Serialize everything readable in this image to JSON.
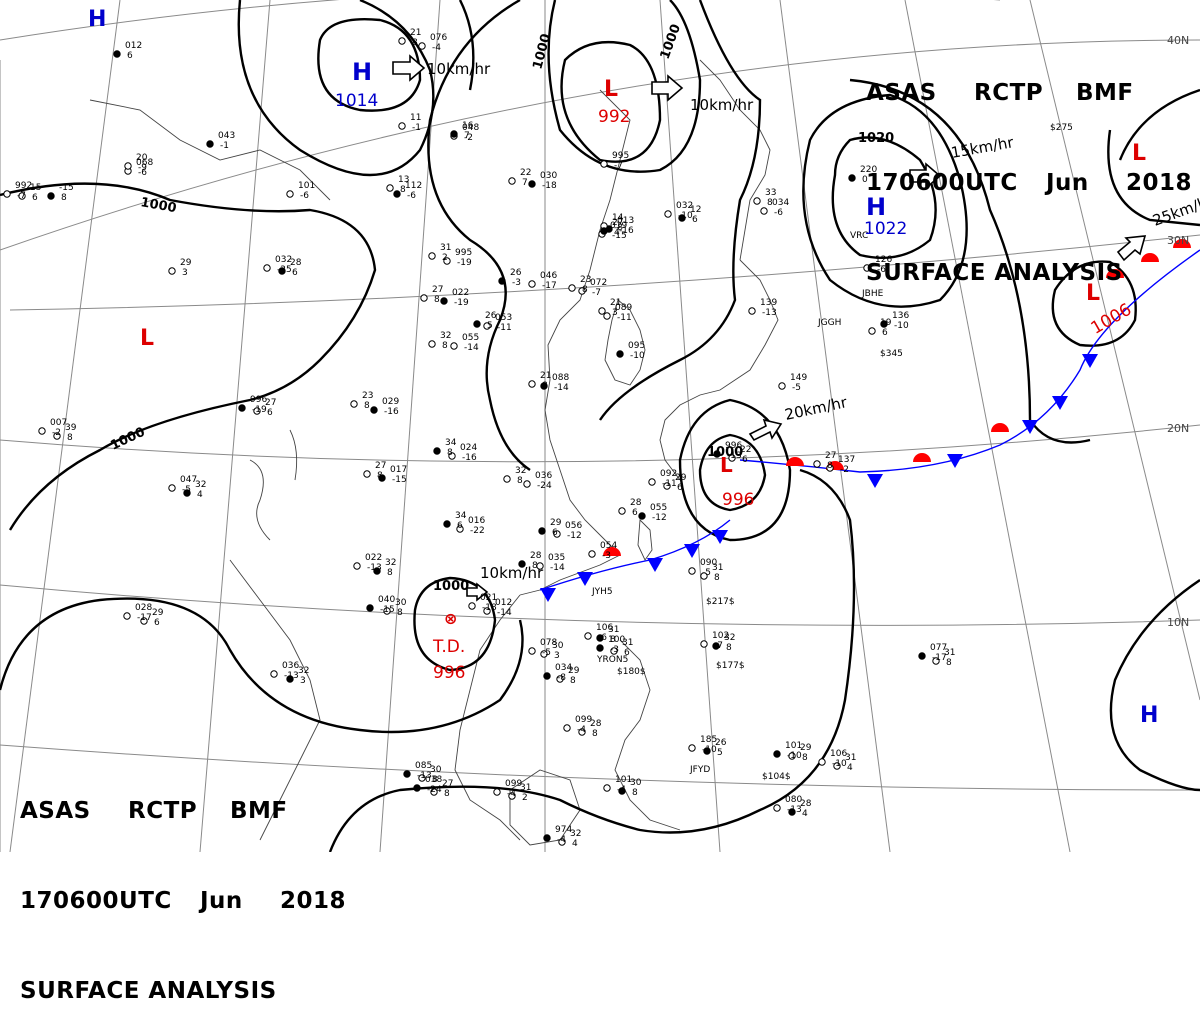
{
  "header": {
    "org_a": "ASAS",
    "org_b": "RCTP",
    "org_c": "BMF",
    "time": "170600UTC",
    "month": "Jun",
    "year": "2018",
    "title": "SURFACE ANALYSIS"
  },
  "centers": [
    {
      "kind": "H",
      "pressure": "1014"
    },
    {
      "kind": "L",
      "pressure": "992"
    },
    {
      "kind": "H",
      "pressure": "1022"
    },
    {
      "kind": "L",
      "pressure": "1006"
    },
    {
      "kind": "L",
      "pressure": ""
    },
    {
      "kind": "L",
      "pressure": ""
    },
    {
      "kind": "L",
      "pressure": "996"
    },
    {
      "kind": "H",
      "pressure": ""
    },
    {
      "kind": "H",
      "pressure": ""
    },
    {
      "kind": "TD",
      "label": "T.D.",
      "pressure": "996"
    }
  ],
  "motions": [
    "10km/hr",
    "10km/hr",
    "15km/hr",
    "25km/hr",
    "20km/hr",
    "10km/hr"
  ],
  "isobar_labels": [
    "1000",
    "1000",
    "1000",
    "1000",
    "1020",
    "1000",
    "1000"
  ],
  "lat_labels": [
    "40N",
    "30N",
    "20N",
    "10N"
  ],
  "colors": {
    "high": "#0000cc",
    "low": "#dd0000",
    "front_blue": "#0000ff",
    "front_red": "#ff0000",
    "line": "#000000",
    "grid": "#808080"
  },
  "stations": [
    [
      "012",
      "6"
    ],
    [
      "076",
      "-4"
    ],
    [
      "21",
      "8"
    ],
    [
      "043",
      "-1"
    ],
    [
      "11",
      "-1"
    ],
    [
      "048",
      "-2"
    ],
    [
      "16",
      "7"
    ],
    [
      "068",
      "-6"
    ],
    [
      "20",
      "-9"
    ],
    [
      "112",
      "-6"
    ],
    [
      "13",
      "8"
    ],
    [
      "101",
      "-6"
    ],
    [
      "-15",
      "8"
    ],
    [
      "995",
      "-19"
    ],
    [
      "31",
      "2"
    ],
    [
      "030",
      "-18"
    ],
    [
      "22",
      "7"
    ],
    [
      "995",
      "-7"
    ],
    [
      "013",
      "-16"
    ],
    [
      "14",
      "-8"
    ],
    [
      "019",
      "-15"
    ],
    [
      "27",
      "4"
    ],
    [
      "034",
      "-6"
    ],
    [
      "33",
      "8"
    ],
    [
      "220",
      "0"
    ],
    [
      "126",
      "-6"
    ],
    [
      "046",
      "-17"
    ],
    [
      "26",
      "-3"
    ],
    [
      "072",
      "-7"
    ],
    [
      "23",
      "8"
    ],
    [
      "022",
      "-19"
    ],
    [
      "27",
      "8"
    ],
    [
      "053",
      "-11"
    ],
    [
      "26",
      "5"
    ],
    [
      "089",
      "-11"
    ],
    [
      "21",
      "3"
    ],
    [
      "095",
      "-10"
    ],
    [
      "055",
      "-14"
    ],
    [
      "32",
      "8"
    ],
    [
      "088",
      "-14"
    ],
    [
      "21",
      "8"
    ],
    [
      "139",
      "-13"
    ],
    [
      "136",
      "-10"
    ],
    [
      "19",
      "6"
    ],
    [
      "149",
      "-5"
    ],
    [
      "029",
      "-16"
    ],
    [
      "23",
      "8"
    ],
    [
      "024",
      "-16"
    ],
    [
      "34",
      "8"
    ],
    [
      "036",
      "-24"
    ],
    [
      "32",
      "8"
    ],
    [
      "017",
      "-15"
    ],
    [
      "27",
      "8"
    ],
    [
      "016",
      "-22"
    ],
    [
      "34",
      "6"
    ],
    [
      "137",
      "-2"
    ],
    [
      "27",
      "8"
    ],
    [
      "055",
      "-12"
    ],
    [
      "28",
      "6"
    ],
    [
      "056",
      "-12"
    ],
    [
      "29",
      "6"
    ],
    [
      "054",
      "-3"
    ],
    [
      "035",
      "-14"
    ],
    [
      "28",
      "8"
    ],
    [
      "012",
      "-14"
    ],
    [
      "021",
      "-18"
    ],
    [
      "32",
      "8"
    ],
    [
      "022",
      "-13"
    ],
    [
      "30",
      "8"
    ],
    [
      "040",
      "-15"
    ],
    [
      "29",
      "6"
    ],
    [
      "028",
      "-17"
    ],
    [
      "32",
      "3"
    ],
    [
      "036",
      "-13"
    ],
    [
      "27",
      "8"
    ],
    [
      "038",
      "-24"
    ],
    [
      "30",
      "3"
    ],
    [
      "078",
      "-5"
    ],
    [
      "31",
      "8"
    ],
    [
      "106",
      "-6"
    ],
    [
      "31",
      "6"
    ],
    [
      "100",
      "-3"
    ],
    [
      "31",
      "8"
    ],
    [
      "090",
      "-5"
    ],
    [
      "32",
      "8"
    ],
    [
      "102",
      "-7"
    ],
    [
      "31",
      "8"
    ],
    [
      "077",
      "-17"
    ],
    [
      "28",
      "8"
    ],
    [
      "099",
      "-4"
    ],
    [
      "26",
      "5"
    ],
    [
      "185",
      "-10"
    ],
    [
      "29",
      "8"
    ],
    [
      "101",
      "-10"
    ],
    [
      "31",
      "4"
    ],
    [
      "106",
      "-10"
    ],
    [
      "28",
      "4"
    ],
    [
      "080",
      "-13"
    ],
    [
      "30",
      "8"
    ],
    [
      "085",
      "-13"
    ],
    [
      "31",
      "2"
    ],
    [
      "099",
      "-4"
    ],
    [
      "30",
      "8"
    ],
    [
      "101",
      "-4"
    ],
    [
      "32",
      "4"
    ],
    [
      "974",
      "-4"
    ],
    [
      "39",
      "8"
    ],
    [
      "007",
      "-2"
    ],
    [
      "32",
      "4"
    ],
    [
      "047",
      "-5"
    ],
    [
      "29",
      "8"
    ],
    [
      "034",
      "-8"
    ],
    [
      "29",
      "6"
    ],
    [
      "092",
      "-11"
    ],
    [
      "12",
      "6"
    ],
    [
      "032",
      "-10"
    ],
    [
      "22",
      "6"
    ],
    [
      "996",
      "-13"
    ],
    [
      "15",
      "6"
    ],
    [
      "992",
      "-7"
    ],
    [
      "28",
      "6"
    ],
    [
      "032",
      "-25"
    ],
    [
      "27",
      "6"
    ],
    [
      "996",
      "-19"
    ],
    [
      "29",
      "3"
    ]
  ],
  "station_ids": [
    "VRC",
    "JGGH",
    "JBHE",
    "JYH5",
    "JFYD",
    "YRON5"
  ],
  "ship_codes": [
    "$275",
    "$345",
    "$217$",
    "$177$",
    "$180$",
    "$104$"
  ]
}
